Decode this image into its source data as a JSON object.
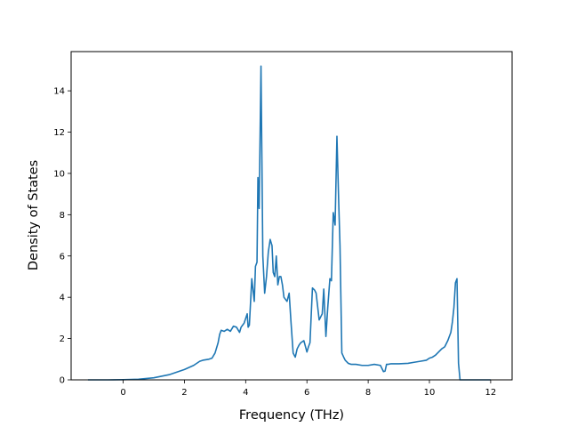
{
  "chart_data": {
    "type": "line",
    "title": "",
    "xlabel": "Frequency (THz)",
    "ylabel": "Density of States",
    "xlim": [
      -1.7,
      12.7
    ],
    "ylim": [
      0,
      15.9
    ],
    "xticks": [
      0,
      2,
      4,
      6,
      8,
      10,
      12
    ],
    "yticks": [
      0,
      2,
      4,
      6,
      8,
      10,
      12,
      14
    ],
    "grid": false,
    "legend": "none",
    "line_color": "#1f77b4",
    "series": [
      {
        "x": [
          -1.15,
          -0.5,
          0.0,
          0.5,
          1.0,
          1.5,
          2.0,
          2.3,
          2.5,
          2.6,
          2.8,
          2.9,
          3.0,
          3.1,
          3.15,
          3.2,
          3.3,
          3.4,
          3.5,
          3.6,
          3.7,
          3.8,
          3.85,
          3.9,
          3.95,
          4.05,
          4.08,
          4.12,
          4.2,
          4.28,
          4.32,
          4.37,
          4.4,
          4.44,
          4.5,
          4.56,
          4.62,
          4.68,
          4.74,
          4.8,
          4.86,
          4.9,
          4.95,
          5.0,
          5.05,
          5.1,
          5.15,
          5.2,
          5.25,
          5.35,
          5.42,
          5.48,
          5.55,
          5.62,
          5.68,
          5.75,
          5.8,
          5.9,
          6.0,
          6.05,
          6.1,
          6.18,
          6.25,
          6.3,
          6.4,
          6.5,
          6.55,
          6.62,
          6.68,
          6.75,
          6.8,
          6.86,
          6.92,
          6.98,
          7.04,
          7.08,
          7.14,
          7.2,
          7.25,
          7.35,
          7.45,
          7.6,
          7.8,
          8.0,
          8.2,
          8.4,
          8.5,
          8.55,
          8.6,
          8.65,
          8.75,
          9.0,
          9.3,
          9.5,
          9.7,
          9.9,
          10.0,
          10.1,
          10.2,
          10.3,
          10.4,
          10.5,
          10.6,
          10.7,
          10.75,
          10.8,
          10.85,
          10.9,
          10.95,
          11.0,
          11.2,
          11.5,
          12.0
        ],
        "y": [
          0.0,
          0.0,
          0.01,
          0.03,
          0.1,
          0.25,
          0.5,
          0.7,
          0.9,
          0.95,
          1.0,
          1.05,
          1.3,
          1.8,
          2.2,
          2.4,
          2.35,
          2.45,
          2.35,
          2.6,
          2.55,
          2.3,
          2.55,
          2.65,
          2.75,
          3.2,
          2.55,
          2.65,
          4.9,
          3.8,
          5.5,
          5.7,
          9.8,
          8.3,
          15.2,
          6.0,
          4.2,
          5.0,
          6.2,
          6.8,
          6.5,
          5.2,
          5.0,
          6.0,
          4.6,
          5.0,
          5.0,
          4.6,
          4.0,
          3.8,
          4.2,
          2.8,
          1.3,
          1.1,
          1.5,
          1.7,
          1.8,
          1.9,
          1.35,
          1.6,
          1.8,
          4.45,
          4.35,
          4.2,
          2.9,
          3.2,
          4.4,
          2.1,
          3.5,
          4.9,
          4.8,
          8.1,
          7.5,
          11.8,
          8.5,
          6.5,
          1.3,
          1.1,
          0.95,
          0.8,
          0.75,
          0.75,
          0.7,
          0.7,
          0.75,
          0.7,
          0.4,
          0.42,
          0.75,
          0.75,
          0.78,
          0.78,
          0.8,
          0.85,
          0.9,
          0.95,
          1.05,
          1.1,
          1.2,
          1.35,
          1.5,
          1.6,
          1.9,
          2.3,
          2.8,
          3.5,
          4.7,
          4.9,
          0.8,
          0.0,
          0.0,
          0.0,
          0.0
        ]
      }
    ]
  }
}
